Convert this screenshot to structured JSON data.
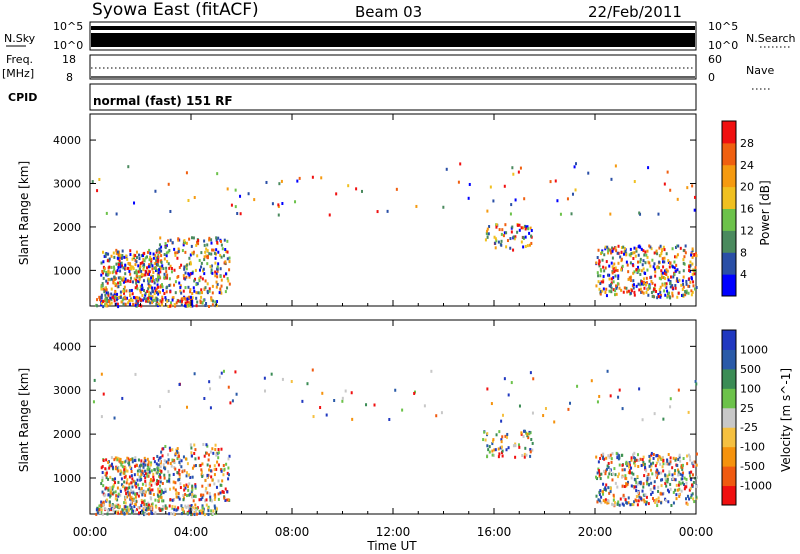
{
  "header": {
    "station": "Syowa East (fitACF)",
    "beam": "Beam 03",
    "date": "22/Feb/2011"
  },
  "strips": {
    "nsky": {
      "label": "N.Sky",
      "top_tick": "10^5",
      "bottom_tick": "10^0"
    },
    "nsearch": {
      "label": "N.Search",
      "top_tick": "10^5",
      "bottom_tick": "10^0"
    },
    "freq": {
      "label_1": "Freq.",
      "label_2": "[MHz]",
      "top_tick": "18",
      "bottom_tick": "8"
    },
    "nave": {
      "label": "Nave",
      "top_tick": "60",
      "bottom_tick": "0"
    },
    "cpid": {
      "label": "CPID",
      "value": "normal (fast) 151 RF"
    }
  },
  "colors": {
    "power": [
      "#0000ff",
      "#2a4fa6",
      "#4a8a5e",
      "#6cc24a",
      "#f0c020",
      "#f59a10",
      "#f06010",
      "#f01010"
    ],
    "velocity": [
      "#f01010",
      "#f05a10",
      "#f5920c",
      "#f5c040",
      "#c8c8c8",
      "#6cc24a",
      "#3b8c55",
      "#2a5aa8",
      "#2038c0"
    ]
  },
  "chart_data": [
    {
      "type": "heatmap",
      "name": "power",
      "xlabel": "Time UT",
      "ylabel": "Slant Range [km]",
      "x_ticks": [
        "00:00",
        "04:00",
        "08:00",
        "12:00",
        "16:00",
        "20:00",
        "00:00"
      ],
      "xlim_hours": [
        0,
        24
      ],
      "ylim_km": [
        180,
        4600
      ],
      "y_ticks": [
        1000,
        2000,
        3000,
        4000
      ],
      "colorbar": {
        "label": "Power [dB]",
        "ticks": [
          "4",
          "8",
          "12",
          "16",
          "20",
          "24",
          "28"
        ],
        "range": [
          0,
          30
        ]
      }
    },
    {
      "type": "heatmap",
      "name": "velocity",
      "xlabel": "Time UT",
      "ylabel": "Slant Range [km]",
      "x_ticks": [
        "00:00",
        "04:00",
        "08:00",
        "12:00",
        "16:00",
        "20:00",
        "00:00"
      ],
      "xlim_hours": [
        0,
        24
      ],
      "ylim_km": [
        180,
        4600
      ],
      "y_ticks": [
        1000,
        2000,
        3000,
        4000
      ],
      "colorbar": {
        "label": "Velocity [m s^-1]",
        "ticks": [
          "1000",
          "500",
          "100",
          "25",
          "-25",
          "-100",
          "-500",
          "-1000"
        ]
      }
    }
  ],
  "xaxis_label": "Time UT"
}
